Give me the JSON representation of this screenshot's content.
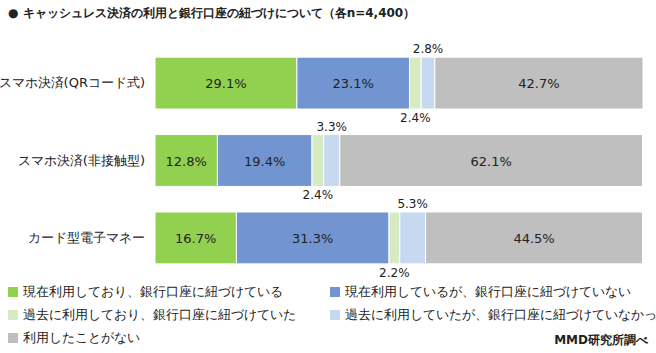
{
  "chart_data": {
    "type": "bar",
    "title": "●  キャッシュレス決済の利用と銀行口座の紐づけについて（各n=4,400）",
    "source": "MMD研究所調べ",
    "orientation": "horizontal",
    "stacked": true,
    "data_labels": true,
    "tick_labels": "y",
    "grid": false,
    "legend": "bottom",
    "categories": [
      "スマホ決済(QRコード式)",
      "スマホ決済(非接触型)",
      "カード型電子マネー"
    ],
    "series": [
      {
        "name": "現在利用しており、銀行口座に紐づけている",
        "color": "#92d050",
        "values": [
          29.1,
          12.8,
          16.7
        ],
        "value_labels": [
          "29.1%",
          "12.8%",
          "16.7%"
        ]
      },
      {
        "name": "現在利用しているが、銀行口座に紐づけていない",
        "color": "#7295d2",
        "values": [
          23.1,
          19.4,
          31.3
        ],
        "value_labels": [
          "23.1%",
          "19.4%",
          "31.3%"
        ]
      },
      {
        "name": "過去に利用しており、銀行口座に紐づけていた",
        "color": "#d7ebc3",
        "values": [
          2.4,
          2.4,
          2.2
        ],
        "value_labels": [
          "2.4%",
          "2.4%",
          "2.2%"
        ]
      },
      {
        "name": "過去に利用していたが、銀行口座に紐づけていなかった",
        "color": "#c6d9f1",
        "values": [
          2.8,
          3.3,
          5.3
        ],
        "value_labels": [
          "2.8%",
          "3.3%",
          "5.3%"
        ]
      },
      {
        "name": "利用したことがない",
        "color": "#bfbfbf",
        "values": [
          42.7,
          62.1,
          44.5
        ],
        "value_labels": [
          "42.7%",
          "62.1%",
          "44.5%"
        ]
      }
    ]
  }
}
